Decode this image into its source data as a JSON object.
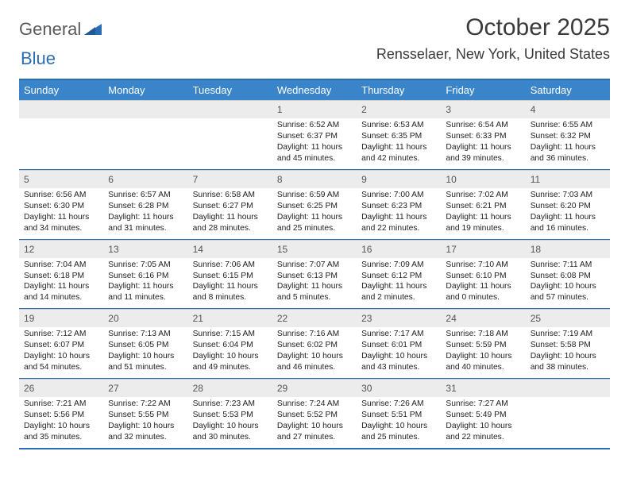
{
  "logo": {
    "word1": "General",
    "word2": "Blue"
  },
  "title": "October 2025",
  "location": "Rensselaer, New York, United States",
  "colors": {
    "accent": "#2a6db3",
    "header_bg": "#3a85c9",
    "daynum_bg": "#ececec",
    "text": "#222222",
    "muted": "#555555"
  },
  "dow": [
    "Sunday",
    "Monday",
    "Tuesday",
    "Wednesday",
    "Thursday",
    "Friday",
    "Saturday"
  ],
  "weeks": [
    [
      null,
      null,
      null,
      {
        "n": "1",
        "sr": "6:52 AM",
        "ss": "6:37 PM",
        "dl": "11 hours and 45 minutes."
      },
      {
        "n": "2",
        "sr": "6:53 AM",
        "ss": "6:35 PM",
        "dl": "11 hours and 42 minutes."
      },
      {
        "n": "3",
        "sr": "6:54 AM",
        "ss": "6:33 PM",
        "dl": "11 hours and 39 minutes."
      },
      {
        "n": "4",
        "sr": "6:55 AM",
        "ss": "6:32 PM",
        "dl": "11 hours and 36 minutes."
      }
    ],
    [
      {
        "n": "5",
        "sr": "6:56 AM",
        "ss": "6:30 PM",
        "dl": "11 hours and 34 minutes."
      },
      {
        "n": "6",
        "sr": "6:57 AM",
        "ss": "6:28 PM",
        "dl": "11 hours and 31 minutes."
      },
      {
        "n": "7",
        "sr": "6:58 AM",
        "ss": "6:27 PM",
        "dl": "11 hours and 28 minutes."
      },
      {
        "n": "8",
        "sr": "6:59 AM",
        "ss": "6:25 PM",
        "dl": "11 hours and 25 minutes."
      },
      {
        "n": "9",
        "sr": "7:00 AM",
        "ss": "6:23 PM",
        "dl": "11 hours and 22 minutes."
      },
      {
        "n": "10",
        "sr": "7:02 AM",
        "ss": "6:21 PM",
        "dl": "11 hours and 19 minutes."
      },
      {
        "n": "11",
        "sr": "7:03 AM",
        "ss": "6:20 PM",
        "dl": "11 hours and 16 minutes."
      }
    ],
    [
      {
        "n": "12",
        "sr": "7:04 AM",
        "ss": "6:18 PM",
        "dl": "11 hours and 14 minutes."
      },
      {
        "n": "13",
        "sr": "7:05 AM",
        "ss": "6:16 PM",
        "dl": "11 hours and 11 minutes."
      },
      {
        "n": "14",
        "sr": "7:06 AM",
        "ss": "6:15 PM",
        "dl": "11 hours and 8 minutes."
      },
      {
        "n": "15",
        "sr": "7:07 AM",
        "ss": "6:13 PM",
        "dl": "11 hours and 5 minutes."
      },
      {
        "n": "16",
        "sr": "7:09 AM",
        "ss": "6:12 PM",
        "dl": "11 hours and 2 minutes."
      },
      {
        "n": "17",
        "sr": "7:10 AM",
        "ss": "6:10 PM",
        "dl": "11 hours and 0 minutes."
      },
      {
        "n": "18",
        "sr": "7:11 AM",
        "ss": "6:08 PM",
        "dl": "10 hours and 57 minutes."
      }
    ],
    [
      {
        "n": "19",
        "sr": "7:12 AM",
        "ss": "6:07 PM",
        "dl": "10 hours and 54 minutes."
      },
      {
        "n": "20",
        "sr": "7:13 AM",
        "ss": "6:05 PM",
        "dl": "10 hours and 51 minutes."
      },
      {
        "n": "21",
        "sr": "7:15 AM",
        "ss": "6:04 PM",
        "dl": "10 hours and 49 minutes."
      },
      {
        "n": "22",
        "sr": "7:16 AM",
        "ss": "6:02 PM",
        "dl": "10 hours and 46 minutes."
      },
      {
        "n": "23",
        "sr": "7:17 AM",
        "ss": "6:01 PM",
        "dl": "10 hours and 43 minutes."
      },
      {
        "n": "24",
        "sr": "7:18 AM",
        "ss": "5:59 PM",
        "dl": "10 hours and 40 minutes."
      },
      {
        "n": "25",
        "sr": "7:19 AM",
        "ss": "5:58 PM",
        "dl": "10 hours and 38 minutes."
      }
    ],
    [
      {
        "n": "26",
        "sr": "7:21 AM",
        "ss": "5:56 PM",
        "dl": "10 hours and 35 minutes."
      },
      {
        "n": "27",
        "sr": "7:22 AM",
        "ss": "5:55 PM",
        "dl": "10 hours and 32 minutes."
      },
      {
        "n": "28",
        "sr": "7:23 AM",
        "ss": "5:53 PM",
        "dl": "10 hours and 30 minutes."
      },
      {
        "n": "29",
        "sr": "7:24 AM",
        "ss": "5:52 PM",
        "dl": "10 hours and 27 minutes."
      },
      {
        "n": "30",
        "sr": "7:26 AM",
        "ss": "5:51 PM",
        "dl": "10 hours and 25 minutes."
      },
      {
        "n": "31",
        "sr": "7:27 AM",
        "ss": "5:49 PM",
        "dl": "10 hours and 22 minutes."
      },
      null
    ]
  ],
  "labels": {
    "sunrise": "Sunrise:",
    "sunset": "Sunset:",
    "daylight": "Daylight:"
  }
}
